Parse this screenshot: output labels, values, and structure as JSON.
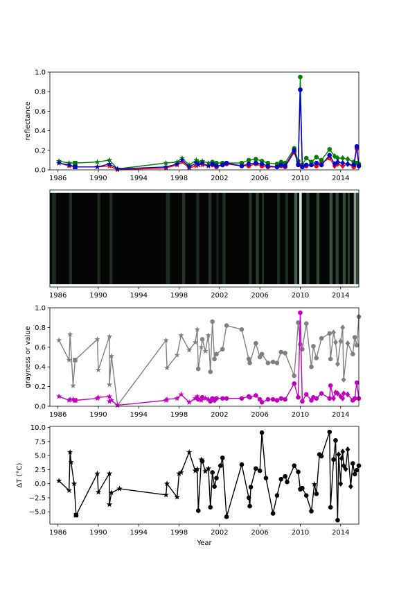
{
  "figure": {
    "xlabel": "Year"
  },
  "chart_data": [
    {
      "type": "line",
      "ylabel": "reflectance",
      "xlim": [
        1985.2,
        2015.8
      ],
      "ylim": [
        0,
        1
      ],
      "xticks": [
        1986,
        1990,
        1994,
        1998,
        2002,
        2006,
        2010,
        2014
      ],
      "yticks": [
        0.0,
        0.2,
        0.4,
        0.6,
        0.8,
        1.0
      ],
      "ytick_labels": [
        "0.0",
        "0.2",
        "0.4",
        "0.6",
        "0.8",
        "1.0"
      ],
      "x": [
        1986.1,
        1987.1,
        1987.7,
        1989.9,
        1991.1,
        1991.9,
        1996.7,
        1997.8,
        1998.3,
        1999.0,
        1999.7,
        1999.9,
        2000.3,
        2000.9,
        2001.3,
        2001.7,
        2002.3,
        2002.7,
        2004.2,
        2004.9,
        2005.6,
        2006.2,
        2006.8,
        2007.7,
        2008.1,
        2008.5,
        2009.4,
        2009.8,
        2010.0,
        2010.2,
        2010.6,
        2011.1,
        2011.6,
        2012.1,
        2012.9,
        2013.4,
        2013.7,
        2014.2,
        2014.7,
        2015.3,
        2015.6,
        2015.8
      ],
      "markers": [
        "*",
        "*",
        "s",
        "*",
        "*",
        "*",
        "*",
        "*",
        "*",
        "*",
        "*",
        "*",
        "*",
        "*",
        "o",
        "o",
        "o",
        "o",
        "o",
        "o",
        "o",
        "o",
        "o",
        "o",
        "o",
        "o",
        "o",
        "o",
        "o",
        "o",
        "o",
        "o",
        "o",
        "o",
        "o",
        "D",
        "D",
        "D",
        "D",
        "o",
        "o",
        "o"
      ],
      "series": [
        {
          "color": "#ff0000",
          "values": [
            0.07,
            0.04,
            0.03,
            0.03,
            0.04,
            0.0,
            0.02,
            0.05,
            0.08,
            0.02,
            0.04,
            0.06,
            0.05,
            0.04,
            0.05,
            0.03,
            0.05,
            0.06,
            0.04,
            0.04,
            0.06,
            0.04,
            0.03,
            0.03,
            0.04,
            0.03,
            0.18,
            0.06,
            0.82,
            0.03,
            0.04,
            0.05,
            0.04,
            0.07,
            0.12,
            0.04,
            0.06,
            0.04,
            0.06,
            0.03,
            0.22,
            0.04
          ]
        },
        {
          "color": "#008000",
          "values": [
            0.09,
            0.07,
            0.07,
            0.08,
            0.1,
            0.01,
            0.07,
            0.08,
            0.12,
            0.05,
            0.1,
            0.08,
            0.09,
            0.07,
            0.08,
            0.07,
            0.07,
            0.07,
            0.07,
            0.1,
            0.11,
            0.09,
            0.07,
            0.06,
            0.08,
            0.07,
            0.22,
            0.09,
            0.95,
            0.05,
            0.12,
            0.08,
            0.13,
            0.1,
            0.21,
            0.14,
            0.12,
            0.12,
            0.11,
            0.08,
            0.07,
            0.06
          ]
        },
        {
          "color": "#0000cc",
          "values": [
            0.07,
            0.05,
            0.03,
            0.03,
            0.06,
            0.01,
            0.03,
            0.06,
            0.1,
            0.03,
            0.07,
            0.05,
            0.07,
            0.04,
            0.06,
            0.04,
            0.05,
            0.07,
            0.04,
            0.06,
            0.07,
            0.06,
            0.04,
            0.03,
            0.05,
            0.04,
            0.2,
            0.05,
            0.82,
            0.03,
            0.05,
            0.05,
            0.07,
            0.05,
            0.15,
            0.06,
            0.08,
            0.07,
            0.06,
            0.05,
            0.24,
            0.04
          ]
        }
      ]
    },
    {
      "type": "heatmap",
      "xlim": [
        1985.2,
        2015.8
      ],
      "xticks": [
        1986,
        1990,
        1994,
        1998,
        2002,
        2006,
        2010,
        2014
      ],
      "description": "strip",
      "stripes": [
        {
          "x": 1985.4,
          "w": 0.4,
          "color": "#1c2a1e"
        },
        {
          "x": 1987.1,
          "w": 0.3,
          "color": "#1f2e22"
        },
        {
          "x": 1989.9,
          "w": 0.3,
          "color": "#1a2a1c"
        },
        {
          "x": 1991.1,
          "w": 0.3,
          "color": "#1c2c1f"
        },
        {
          "x": 1996.7,
          "w": 0.4,
          "color": "#1a2a1c"
        },
        {
          "x": 1998.3,
          "w": 0.3,
          "color": "#22362a"
        },
        {
          "x": 1999.7,
          "w": 0.3,
          "color": "#1c2d20"
        },
        {
          "x": 2000.9,
          "w": 0.3,
          "color": "#22342a"
        },
        {
          "x": 2001.7,
          "w": 0.2,
          "color": "#182619"
        },
        {
          "x": 2002.3,
          "w": 0.3,
          "color": "#1e3022"
        },
        {
          "x": 2004.9,
          "w": 0.3,
          "color": "#203626"
        },
        {
          "x": 2005.6,
          "w": 0.3,
          "color": "#2a402e"
        },
        {
          "x": 2006.2,
          "w": 0.2,
          "color": "#1e2e22"
        },
        {
          "x": 2007.7,
          "w": 0.3,
          "color": "#1c2c1f"
        },
        {
          "x": 2008.5,
          "w": 0.3,
          "color": "#1a2a1c"
        },
        {
          "x": 2009.4,
          "w": 0.3,
          "color": "#46604a"
        },
        {
          "x": 2009.9,
          "w": 0.25,
          "color": "#d8e8d8"
        },
        {
          "x": 2010.6,
          "w": 0.3,
          "color": "#24382a"
        },
        {
          "x": 2011.6,
          "w": 0.3,
          "color": "#2e4632"
        },
        {
          "x": 2012.9,
          "w": 0.3,
          "color": "#3a543e"
        },
        {
          "x": 2013.5,
          "w": 0.3,
          "color": "#2e4432"
        },
        {
          "x": 2014.2,
          "w": 0.3,
          "color": "#324a36"
        },
        {
          "x": 2014.7,
          "w": 0.2,
          "color": "#2a3e2e"
        },
        {
          "x": 2015.3,
          "w": 0.25,
          "color": "#8a9a8c"
        },
        {
          "x": 2015.6,
          "w": 0.2,
          "color": "#3a4c3e"
        }
      ]
    },
    {
      "type": "line",
      "ylabel": "grayness or value",
      "xlim": [
        1985.2,
        2015.8
      ],
      "ylim": [
        0,
        1
      ],
      "xticks": [
        1986,
        1990,
        1994,
        1998,
        2002,
        2006,
        2010,
        2014
      ],
      "yticks": [
        0.0,
        0.2,
        0.4,
        0.6,
        0.8,
        1.0
      ],
      "ytick_labels": [
        "0.0",
        "0.2",
        "0.4",
        "0.6",
        "0.8",
        "1.0"
      ],
      "x": [
        1986.1,
        1987.1,
        1987.2,
        1987.5,
        1987.7,
        1989.9,
        1990.0,
        1991.1,
        1991.1,
        1991.3,
        1991.9,
        1996.7,
        1996.8,
        1997.8,
        1998.2,
        1999.0,
        1999.6,
        1999.8,
        1999.9,
        2000.2,
        2000.3,
        2000.6,
        2000.9,
        2001.1,
        2001.3,
        2001.5,
        2001.7,
        2002.3,
        2002.7,
        2004.2,
        2004.9,
        2005.0,
        2005.6,
        2006.0,
        2006.2,
        2006.8,
        2007.3,
        2007.7,
        2008.1,
        2008.5,
        2009.4,
        2009.8,
        2010.0,
        2010.2,
        2010.6,
        2011.1,
        2011.3,
        2011.6,
        2012.1,
        2012.9,
        2013.0,
        2013.3,
        2013.5,
        2013.7,
        2014.0,
        2014.2,
        2014.3,
        2014.7,
        2015.2,
        2015.4,
        2015.6,
        2015.8
      ],
      "series": [
        {
          "color": "#808080",
          "markers": [
            "*",
            "*",
            "*",
            "*",
            "s",
            "*",
            "*",
            "*",
            "*",
            "*",
            "*",
            "*",
            "*",
            "*",
            "*",
            "*",
            "*",
            "*",
            "o",
            "*",
            "o",
            "*",
            "*",
            "o",
            "o",
            "o",
            "o",
            "o",
            "o",
            "o",
            "o",
            "o",
            "o",
            "o",
            "o",
            "o",
            "o",
            "o",
            "o",
            "o",
            "o",
            "o",
            "o",
            "o",
            "o",
            "o",
            "o",
            "o",
            "o",
            "o",
            "o",
            "D",
            "D",
            "D",
            "D",
            "D",
            "D",
            "D",
            "o",
            "o",
            "o",
            "o"
          ],
          "values": [
            0.67,
            0.47,
            0.73,
            0.21,
            0.47,
            0.68,
            0.37,
            0.71,
            0.22,
            0.51,
            0.01,
            0.67,
            0.39,
            0.52,
            0.72,
            0.57,
            0.65,
            0.78,
            0.38,
            0.6,
            0.68,
            0.56,
            0.72,
            0.35,
            0.86,
            0.48,
            0.53,
            0.58,
            0.82,
            0.78,
            0.48,
            0.44,
            0.64,
            0.5,
            0.53,
            0.44,
            0.45,
            0.44,
            0.55,
            0.54,
            0.31,
            0.85,
            0.63,
            0.58,
            0.84,
            0.4,
            0.61,
            0.49,
            0.69,
            0.74,
            0.48,
            0.75,
            0.65,
            0.43,
            0.66,
            0.8,
            0.27,
            0.64,
            0.53,
            0.7,
            0.62,
            0.91
          ]
        },
        {
          "color": "#bf00bf",
          "markers": [
            "*",
            "*",
            "*",
            "*",
            "s",
            "*",
            "*",
            "*",
            "*",
            "*",
            "*",
            "*",
            "*",
            "*",
            "*",
            "*",
            "*",
            "*",
            "o",
            "*",
            "o",
            "*",
            "*",
            "o",
            "o",
            "o",
            "o",
            "o",
            "o",
            "o",
            "o",
            "o",
            "o",
            "o",
            "o",
            "o",
            "o",
            "o",
            "o",
            "o",
            "o",
            "o",
            "o",
            "o",
            "o",
            "o",
            "o",
            "o",
            "o",
            "o",
            "o",
            "D",
            "D",
            "D",
            "D",
            "D",
            "D",
            "D",
            "o",
            "o",
            "o",
            "o"
          ],
          "values": [
            0.1,
            0.06,
            0.07,
            0.07,
            0.06,
            0.08,
            0.09,
            0.1,
            0.05,
            0.06,
            0.01,
            0.06,
            0.07,
            0.08,
            0.12,
            0.04,
            0.08,
            0.1,
            0.07,
            0.06,
            0.09,
            0.08,
            0.07,
            0.05,
            0.08,
            0.06,
            0.08,
            0.08,
            0.08,
            0.08,
            0.1,
            0.09,
            0.11,
            0.07,
            0.04,
            0.07,
            0.07,
            0.06,
            0.08,
            0.07,
            0.23,
            0.09,
            0.95,
            0.05,
            0.12,
            0.06,
            0.09,
            0.08,
            0.13,
            0.08,
            0.21,
            0.08,
            0.14,
            0.13,
            0.1,
            0.08,
            0.13,
            0.12,
            0.06,
            0.08,
            0.24,
            0.08
          ]
        }
      ]
    },
    {
      "type": "line",
      "ylabel": "ΔT (°C)",
      "xlabel": "Year",
      "xlim": [
        1985.2,
        2015.8
      ],
      "ylim": [
        -7.2,
        10.2
      ],
      "xticks": [
        1986,
        1990,
        1994,
        1998,
        2002,
        2006,
        2010,
        2014
      ],
      "yticks": [
        -5.0,
        -2.5,
        0.0,
        2.5,
        5.0,
        7.5,
        10.0
      ],
      "ytick_labels": [
        "−5.0",
        "−2.5",
        "0.0",
        "2.5",
        "5.0",
        "7.5",
        "10.0"
      ],
      "series": [
        {
          "color": "#000000",
          "x": [
            1986.1,
            1987.1,
            1987.2,
            1987.3,
            1987.6,
            1987.8,
            1989.9,
            1990.0,
            1991.1,
            1991.1,
            1991.3,
            1992.1,
            1996.7,
            1996.8,
            1997.8,
            1998.0,
            1998.2,
            1999.0,
            1999.6,
            1999.8,
            1999.9,
            2000.2,
            2000.3,
            2000.6,
            2000.9,
            2001.1,
            2001.3,
            2001.5,
            2001.7,
            2002.1,
            2002.3,
            2002.7,
            2004.2,
            2004.9,
            2005.0,
            2005.1,
            2005.6,
            2006.0,
            2006.2,
            2006.6,
            2007.3,
            2007.7,
            2008.1,
            2008.5,
            2008.7,
            2009.4,
            2009.8,
            2010.0,
            2010.2,
            2010.6,
            2011.1,
            2011.4,
            2011.6,
            2011.9,
            2012.1,
            2012.9,
            2013.0,
            2013.3,
            2013.5,
            2013.7,
            2013.8,
            2014.0,
            2014.1,
            2014.2,
            2014.3,
            2014.5,
            2014.7,
            2015.0,
            2015.2,
            2015.4,
            2015.6,
            2015.8
          ],
          "y": [
            0.5,
            -1.2,
            5.6,
            3.8,
            0.0,
            -5.6,
            1.8,
            -1.5,
            1.8,
            -3.7,
            -1.6,
            -0.9,
            -2.0,
            0.0,
            -2.4,
            1.8,
            2.0,
            5.6,
            2.3,
            2.6,
            -4.8,
            4.3,
            4.0,
            2.2,
            2.7,
            -4.2,
            2.0,
            -0.5,
            1.0,
            3.2,
            4.6,
            -5.9,
            3.4,
            -2.5,
            -4.0,
            -0.6,
            2.7,
            2.3,
            9.1,
            1.0,
            -5.3,
            -2.1,
            0.8,
            1.3,
            0.3,
            3.2,
            2.1,
            -1.0,
            -0.8,
            -2.1,
            -4.9,
            -0.1,
            -1.8,
            5.2,
            4.9,
            9.2,
            -4.2,
            4.3,
            7.7,
            -6.5,
            5.2,
            0.0,
            4.5,
            5.7,
            3.2,
            2.6,
            6.1,
            -0.5,
            3.6,
            1.7,
            2.4,
            3.2
          ],
          "markers": [
            "*",
            "*",
            "*",
            "*",
            "*",
            "s",
            "*",
            "*",
            "*",
            "*",
            "*",
            "*",
            "*",
            "*",
            "*",
            "*",
            "*",
            "*",
            "*",
            "*",
            "o",
            "*",
            "o",
            "*",
            "*",
            "o",
            "o",
            "o",
            "o",
            "o",
            "o",
            "o",
            "o",
            "o",
            "o",
            "o",
            "o",
            "o",
            "o",
            "o",
            "o",
            "o",
            "o",
            "o",
            "o",
            "o",
            "o",
            "o",
            "o",
            "o",
            "o",
            "*",
            "o",
            "o",
            "o",
            "o",
            "o",
            "o",
            "o",
            "o",
            "D",
            "D",
            "D",
            "D",
            "D",
            "D",
            "D",
            "D",
            "o",
            "o",
            "o",
            "o"
          ]
        }
      ]
    }
  ]
}
